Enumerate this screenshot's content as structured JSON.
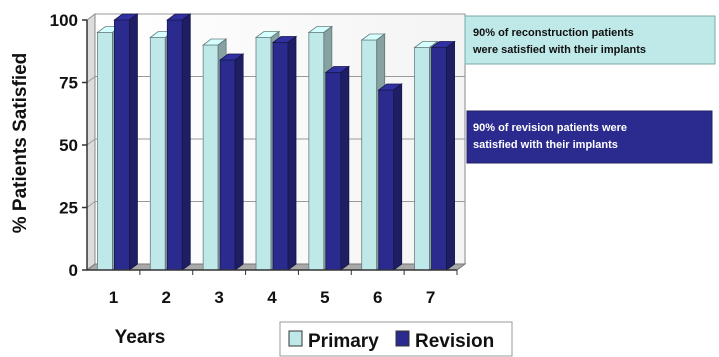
{
  "chart_data": {
    "type": "bar",
    "categories": [
      "1",
      "2",
      "3",
      "4",
      "5",
      "6",
      "7"
    ],
    "series": [
      {
        "name": "Primary",
        "color": "#bfe8e8",
        "values": [
          95,
          93,
          90,
          93,
          95,
          92,
          89
        ]
      },
      {
        "name": "Revision",
        "color": "#2b2b8f",
        "values": [
          100,
          100,
          84,
          91,
          79,
          72,
          89
        ]
      }
    ],
    "xlabel": "Years",
    "ylabel": "% Patients Satisfied",
    "ylim": [
      0,
      100
    ],
    "yticks": [
      "0",
      "25",
      "50",
      "75",
      "100"
    ],
    "grid": true,
    "legend_position": "bottom-right",
    "annotations": [
      {
        "lines": [
          "90% of reconstruction patients",
          "were satisfied with their implants"
        ],
        "background": "#bfe8e8",
        "text_color": "#111111"
      },
      {
        "lines": [
          "90% of revision patients were",
          "satisfied with their implants"
        ],
        "background": "#2b2b8f",
        "text_color": "#ffffff"
      }
    ]
  }
}
